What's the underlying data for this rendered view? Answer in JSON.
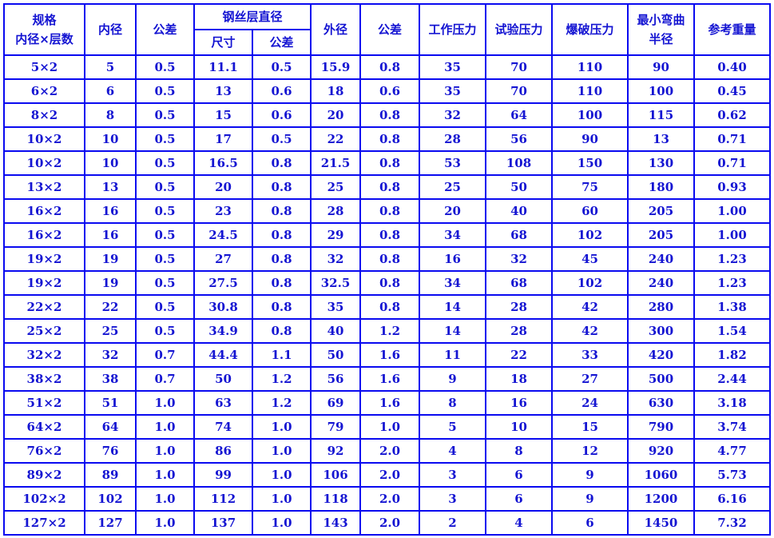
{
  "headers": {
    "spec_line1": "规格",
    "spec_line2": "内径×层数",
    "inner_diameter": "内径",
    "tolerance": "公差",
    "wire_layer_diameter": "钢丝层直径",
    "wire_size": "尺寸",
    "wire_tolerance": "公差",
    "outer_diameter": "外径",
    "outer_tolerance": "公差",
    "working_pressure": "工作压力",
    "test_pressure": "试验压力",
    "burst_pressure": "爆破压力",
    "min_bend_line1": "最小弯曲",
    "min_bend_line2": "半径",
    "ref_weight": "参考重量"
  },
  "rows": [
    [
      "5×2",
      "5",
      "0.5",
      "11.1",
      "0.5",
      "15.9",
      "0.8",
      "35",
      "70",
      "110",
      "90",
      "0.40"
    ],
    [
      "6×2",
      "6",
      "0.5",
      "13",
      "0.6",
      "18",
      "0.6",
      "35",
      "70",
      "110",
      "100",
      "0.45"
    ],
    [
      "8×2",
      "8",
      "0.5",
      "15",
      "0.6",
      "20",
      "0.8",
      "32",
      "64",
      "100",
      "115",
      "0.62"
    ],
    [
      "10×2",
      "10",
      "0.5",
      "17",
      "0.5",
      "22",
      "0.8",
      "28",
      "56",
      "90",
      "13",
      "0.71"
    ],
    [
      "10×2",
      "10",
      "0.5",
      "16.5",
      "0.8",
      "21.5",
      "0.8",
      "53",
      "108",
      "150",
      "130",
      "0.71"
    ],
    [
      "13×2",
      "13",
      "0.5",
      "20",
      "0.8",
      "25",
      "0.8",
      "25",
      "50",
      "75",
      "180",
      "0.93"
    ],
    [
      "16×2",
      "16",
      "0.5",
      "23",
      "0.8",
      "28",
      "0.8",
      "20",
      "40",
      "60",
      "205",
      "1.00"
    ],
    [
      "16×2",
      "16",
      "0.5",
      "24.5",
      "0.8",
      "29",
      "0.8",
      "34",
      "68",
      "102",
      "205",
      "1.00"
    ],
    [
      "19×2",
      "19",
      "0.5",
      "27",
      "0.8",
      "32",
      "0.8",
      "16",
      "32",
      "45",
      "240",
      "1.23"
    ],
    [
      "19×2",
      "19",
      "0.5",
      "27.5",
      "0.8",
      "32.5",
      "0.8",
      "34",
      "68",
      "102",
      "240",
      "1.23"
    ],
    [
      "22×2",
      "22",
      "0.5",
      "30.8",
      "0.8",
      "35",
      "0.8",
      "14",
      "28",
      "42",
      "280",
      "1.38"
    ],
    [
      "25×2",
      "25",
      "0.5",
      "34.9",
      "0.8",
      "40",
      "1.2",
      "14",
      "28",
      "42",
      "300",
      "1.54"
    ],
    [
      "32×2",
      "32",
      "0.7",
      "44.4",
      "1.1",
      "50",
      "1.6",
      "11",
      "22",
      "33",
      "420",
      "1.82"
    ],
    [
      "38×2",
      "38",
      "0.7",
      "50",
      "1.2",
      "56",
      "1.6",
      "9",
      "18",
      "27",
      "500",
      "2.44"
    ],
    [
      "51×2",
      "51",
      "1.0",
      "63",
      "1.2",
      "69",
      "1.6",
      "8",
      "16",
      "24",
      "630",
      "3.18"
    ],
    [
      "64×2",
      "64",
      "1.0",
      "74",
      "1.0",
      "79",
      "1.0",
      "5",
      "10",
      "15",
      "790",
      "3.74"
    ],
    [
      "76×2",
      "76",
      "1.0",
      "86",
      "1.0",
      "92",
      "2.0",
      "4",
      "8",
      "12",
      "920",
      "4.77"
    ],
    [
      "89×2",
      "89",
      "1.0",
      "99",
      "1.0",
      "106",
      "2.0",
      "3",
      "6",
      "9",
      "1060",
      "5.73"
    ],
    [
      "102×2",
      "102",
      "1.0",
      "112",
      "1.0",
      "118",
      "2.0",
      "3",
      "6",
      "9",
      "1200",
      "6.16"
    ],
    [
      "127×2",
      "127",
      "1.0",
      "137",
      "1.0",
      "143",
      "2.0",
      "2",
      "4",
      "6",
      "1450",
      "7.32"
    ]
  ],
  "colors": {
    "border": "#0a0af0",
    "text": "#1414d2"
  }
}
